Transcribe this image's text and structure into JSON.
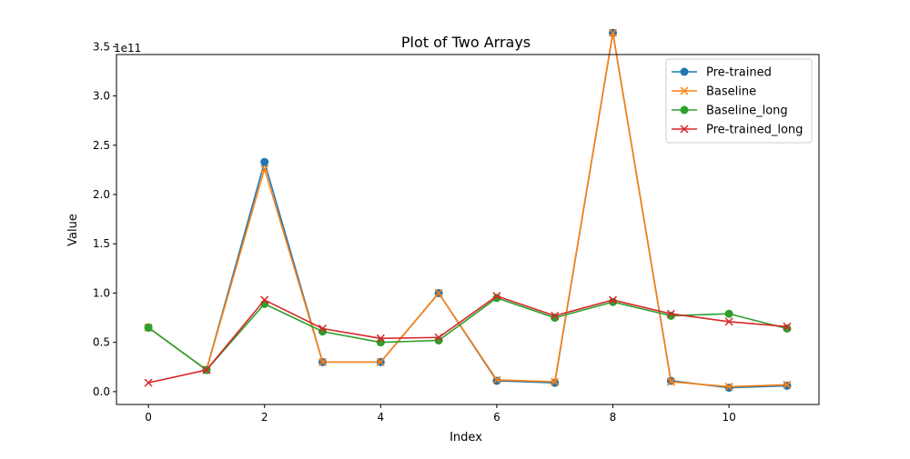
{
  "chart_data": {
    "type": "line",
    "title": "Plot of Two Arrays",
    "xlabel": "Index",
    "ylabel": "Value",
    "y_offset_label": "1e11",
    "xlim": [
      -0.55,
      11.55
    ],
    "ylim": [
      -0.13,
      3.42
    ],
    "y_unit_multiplier": 100000000000.0,
    "x": [
      0,
      1,
      2,
      3,
      4,
      5,
      6,
      7,
      8,
      9,
      10,
      11
    ],
    "x_ticks": [
      0,
      2,
      4,
      6,
      8,
      10
    ],
    "x_tick_labels": [
      "0",
      "2",
      "4",
      "6",
      "8",
      "10"
    ],
    "y_ticks": [
      0.0,
      0.5,
      1.0,
      1.5,
      2.0,
      2.5,
      3.0,
      3.5
    ],
    "y_tick_labels": [
      "0.0",
      "0.5",
      "1.0",
      "1.5",
      "2.0",
      "2.5",
      "3.0",
      "3.5"
    ],
    "grid": false,
    "legend_position": "upper-right",
    "series": [
      {
        "name": "Pre-trained",
        "color": "#1f77b4",
        "marker": "circle",
        "values": [
          0.65,
          0.22,
          2.33,
          0.3,
          0.3,
          1.0,
          0.11,
          0.09,
          3.64,
          0.11,
          0.04,
          0.06
        ]
      },
      {
        "name": "Baseline",
        "color": "#ff7f0e",
        "marker": "x",
        "values": [
          0.65,
          0.22,
          2.26,
          0.3,
          0.3,
          1.0,
          0.12,
          0.1,
          3.64,
          0.1,
          0.05,
          0.07
        ]
      },
      {
        "name": "Baseline_long",
        "color": "#2ca02c",
        "marker": "circle",
        "values": [
          0.65,
          0.22,
          0.89,
          0.61,
          0.5,
          0.52,
          0.95,
          0.75,
          0.91,
          0.77,
          0.79,
          0.64
        ]
      },
      {
        "name": "Pre-trained_long",
        "color": "#d62728",
        "marker": "x",
        "values": [
          0.09,
          0.22,
          0.93,
          0.64,
          0.54,
          0.55,
          0.97,
          0.77,
          0.93,
          0.79,
          0.71,
          0.66
        ]
      }
    ]
  }
}
